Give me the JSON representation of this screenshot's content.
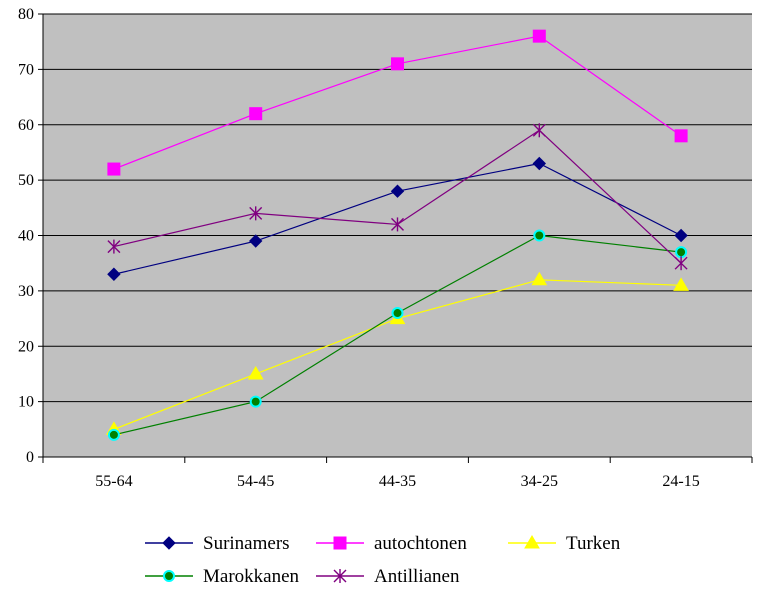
{
  "chart_data": {
    "type": "line",
    "title": "",
    "xlabel": "",
    "ylabel": "",
    "categories": [
      "55-64",
      "54-45",
      "44-35",
      "34-25",
      "24-15"
    ],
    "ylim": [
      0,
      80
    ],
    "yticks": [
      "0",
      "10",
      "20",
      "30",
      "40",
      "50",
      "60",
      "70",
      "80"
    ],
    "grid": "horizontal",
    "plot_background": "#c0c0c0",
    "legend_placement": "bottom",
    "series": [
      {
        "name": "Surinamers",
        "values": [
          33,
          39,
          48,
          53,
          40
        ],
        "color": "#000080",
        "marker": "diamond"
      },
      {
        "name": "autochtonen",
        "values": [
          52,
          62,
          71,
          76,
          58
        ],
        "color": "#ff00ff",
        "marker": "square"
      },
      {
        "name": "Turken",
        "values": [
          5,
          15,
          25,
          32,
          31
        ],
        "color": "#ffff00",
        "marker": "triangle"
      },
      {
        "name": "Marokkanen",
        "values": [
          4,
          10,
          26,
          40,
          37
        ],
        "color": "#008000",
        "marker": "circle",
        "marker_fill": "#008000",
        "marker_stroke": "#00ffff"
      },
      {
        "name": "Antillianen",
        "values": [
          38,
          44,
          42,
          59,
          35
        ],
        "color": "#800080",
        "marker": "asterisk"
      }
    ]
  }
}
